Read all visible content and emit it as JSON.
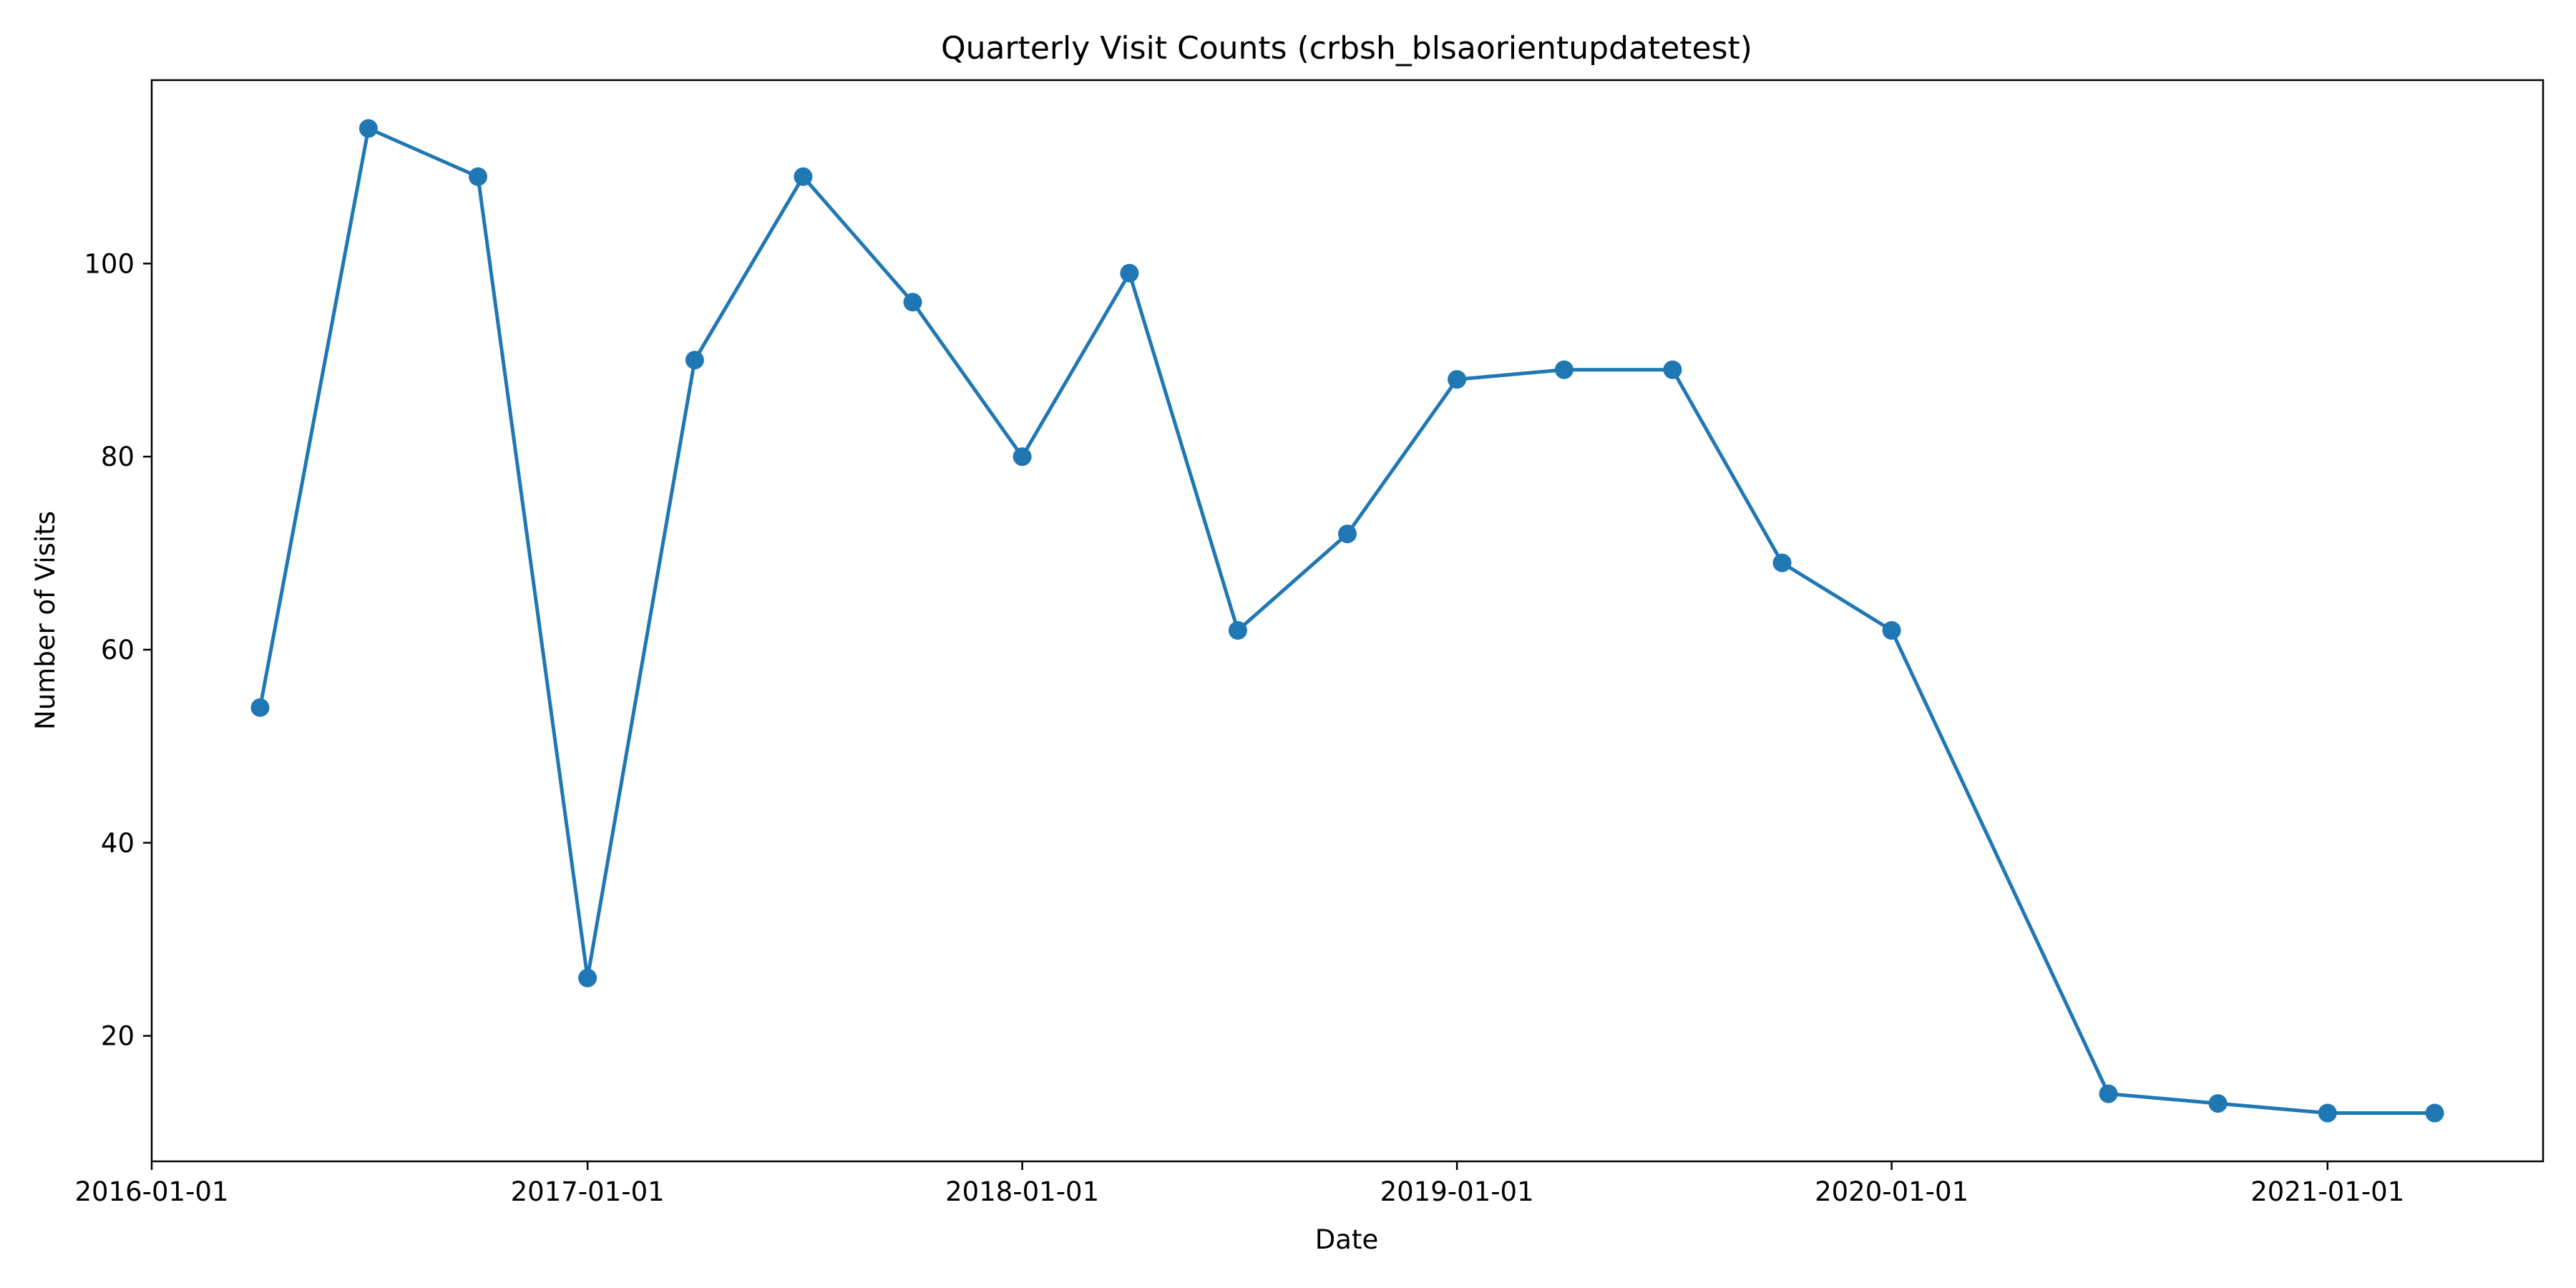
{
  "chart_data": {
    "type": "line",
    "title": "Quarterly Visit Counts (crbsh_blsaorientupdatetest)",
    "xlabel": "Date",
    "ylabel": "Number of Visits",
    "x_tick_labels": [
      "2016-01-01",
      "2017-01-01",
      "2018-01-01",
      "2019-01-01",
      "2020-01-01",
      "2021-01-01"
    ],
    "y_tick_labels": [
      "20",
      "40",
      "60",
      "80",
      "100"
    ],
    "y_ticks": [
      20,
      40,
      60,
      80,
      100
    ],
    "xlim": [
      "2016-01-01",
      "2021-07-01"
    ],
    "ylim": [
      7,
      119
    ],
    "grid": false,
    "color": "#1f77b4",
    "series": [
      {
        "x": [
          "2016-04-01",
          "2016-07-01",
          "2016-10-01",
          "2017-01-01",
          "2017-04-01",
          "2017-07-01",
          "2017-10-01",
          "2018-01-01",
          "2018-04-01",
          "2018-07-01",
          "2018-10-01",
          "2019-01-01",
          "2019-04-01",
          "2019-07-01",
          "2019-10-01",
          "2020-01-01",
          "2020-07-01",
          "2020-10-01",
          "2021-01-01",
          "2021-04-01"
        ],
        "values": [
          54,
          114,
          109,
          26,
          90,
          109,
          96,
          80,
          99,
          62,
          72,
          88,
          89,
          89,
          69,
          62,
          14,
          13,
          12,
          12
        ]
      }
    ]
  }
}
